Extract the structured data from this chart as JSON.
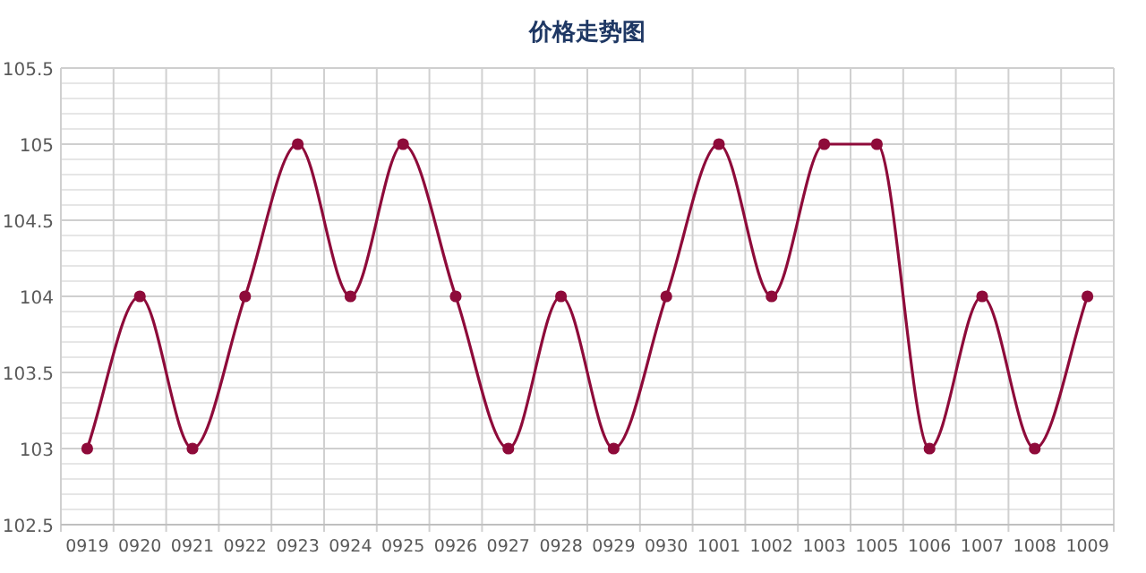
{
  "chart_data": {
    "type": "line",
    "title": "价格走势图",
    "categories": [
      "0919",
      "0920",
      "0921",
      "0922",
      "0923",
      "0924",
      "0925",
      "0926",
      "0927",
      "0928",
      "0929",
      "0930",
      "1001",
      "1002",
      "1003",
      "1005",
      "1006",
      "1007",
      "1008",
      "1009"
    ],
    "series": [
      {
        "color": "#8e0b3a",
        "values": [
          103,
          104,
          103,
          104,
          105,
          104,
          105,
          104,
          103,
          104,
          103,
          104,
          105,
          104,
          105,
          105,
          103,
          104,
          103,
          104
        ]
      }
    ],
    "ylim": [
      102.5,
      105.5
    ],
    "yticks": [
      102.5,
      {
        "value": 102.6,
        "label": null
      },
      {
        "value": 102.7,
        "label": null
      },
      {
        "value": 102.8,
        "label": null
      },
      {
        "value": 102.9,
        "label": null
      },
      103,
      {
        "value": 103.1,
        "label": null
      },
      {
        "value": 103.2,
        "label": null
      },
      {
        "value": 103.3,
        "label": null
      },
      {
        "value": 103.4,
        "label": null
      },
      103.5,
      {
        "value": 103.6,
        "label": null
      },
      {
        "value": 103.7,
        "label": null
      },
      {
        "value": 103.8,
        "label": null
      },
      {
        "value": 103.9,
        "label": null
      },
      104,
      {
        "value": 104.1,
        "label": null
      },
      {
        "value": 104.2,
        "label": null
      },
      {
        "value": 104.3,
        "label": null
      },
      {
        "value": 104.4,
        "label": null
      },
      104.5,
      {
        "value": 104.6,
        "label": null
      },
      {
        "value": 104.7,
        "label": null
      },
      {
        "value": 104.8,
        "label": null
      },
      {
        "value": 104.9,
        "label": null
      },
      105,
      {
        "value": 105.1,
        "label": null
      },
      {
        "value": 105.2,
        "label": null
      },
      {
        "value": 105.3,
        "label": null
      },
      {
        "value": 105.4,
        "label": null
      },
      105.5
    ],
    "grid": true,
    "marker": "circle",
    "line_style": "solid"
  }
}
